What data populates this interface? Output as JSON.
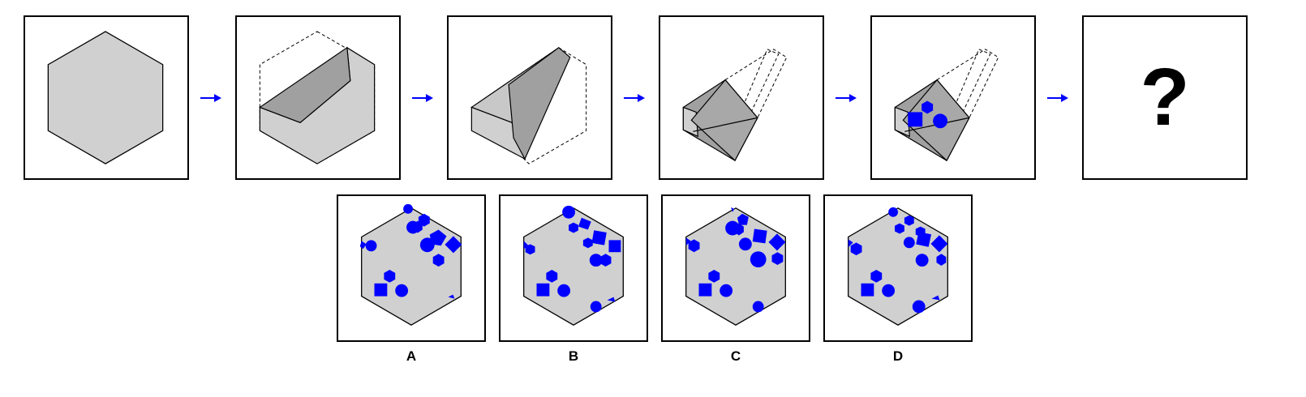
{
  "question_mark": "?",
  "options": [
    {
      "label": "A"
    },
    {
      "label": "B"
    },
    {
      "label": "C"
    },
    {
      "label": "D"
    }
  ],
  "colors": {
    "hexagon_fill": "#d0d0d0",
    "fold_shade": "#a0a0a0",
    "shape_blue": "#0000ff",
    "arrow_blue": "#0000ff"
  }
}
